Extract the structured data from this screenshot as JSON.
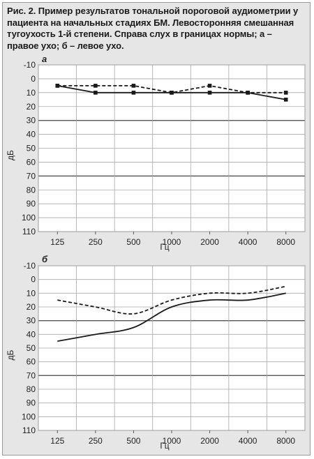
{
  "caption": {
    "lead": "Рис. 2.",
    "text": "Пример результатов тональной пороговой аудиометрии у пациента на начальных стадиях БМ. Левосторонняя смешанная тугоухость 1-й степени. Справа слух в границах нормы; а – правое ухо; б – левое ухо."
  },
  "chart_data": [
    {
      "type": "line",
      "panel_label": "а",
      "categories": [
        "125",
        "250",
        "500",
        "1000",
        "2000",
        "4000",
        "8000"
      ],
      "xlabel": "Гц",
      "ylabel": "дБ",
      "yticks": [
        -10,
        0,
        10,
        20,
        30,
        40,
        50,
        60,
        70,
        80,
        90,
        100,
        110
      ],
      "ylim": [
        -10,
        110
      ],
      "y_inverted": true,
      "grid": true,
      "series": [
        {
          "style": "solid",
          "color": "#1a1a1a",
          "markers": true,
          "values": [
            5,
            10,
            10,
            10,
            10,
            10,
            15
          ]
        },
        {
          "style": "dashed",
          "color": "#1a1a1a",
          "markers": true,
          "values": [
            5,
            5,
            5,
            10,
            5,
            10,
            10
          ]
        }
      ]
    },
    {
      "type": "line",
      "panel_label": "б",
      "categories": [
        "125",
        "250",
        "500",
        "1000",
        "2000",
        "4000",
        "8000"
      ],
      "xlabel": "Гц",
      "ylabel": "дБ",
      "yticks": [
        -10,
        0,
        10,
        20,
        30,
        40,
        50,
        60,
        70,
        80,
        90,
        100,
        110
      ],
      "ylim": [
        -10,
        110
      ],
      "y_inverted": true,
      "grid": true,
      "series": [
        {
          "style": "solid",
          "color": "#1a1a1a",
          "markers": false,
          "values": [
            45,
            40,
            35,
            20,
            15,
            15,
            10
          ]
        },
        {
          "style": "dashed",
          "color": "#1a1a1a",
          "markers": false,
          "values": [
            15,
            20,
            25,
            15,
            10,
            10,
            5
          ]
        }
      ]
    }
  ]
}
